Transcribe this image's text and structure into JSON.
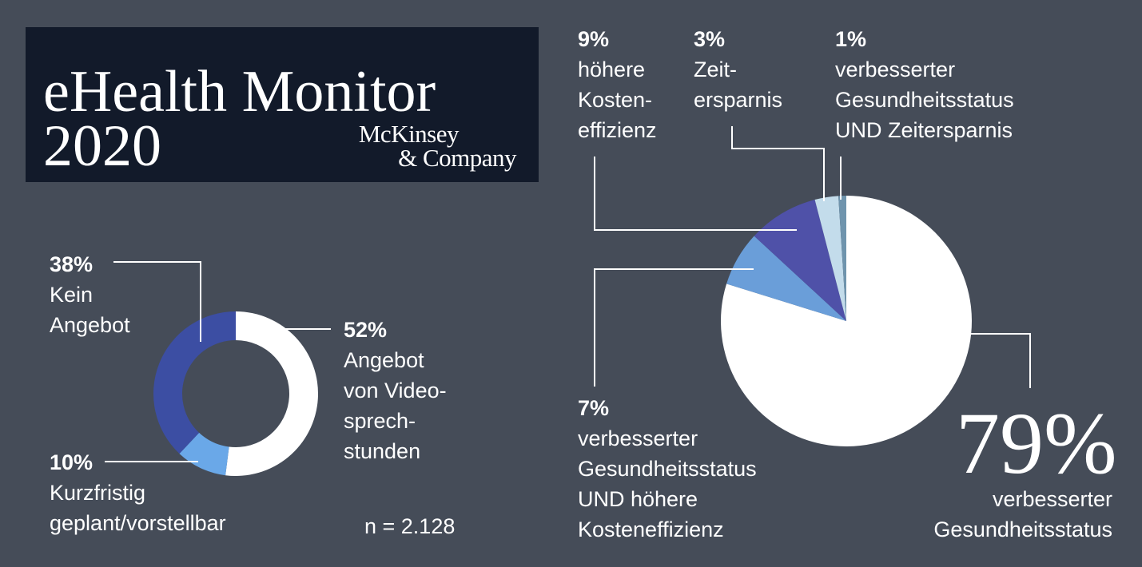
{
  "header": {
    "title_line1": "eHealth Monitor",
    "title_line2": "2020",
    "logo_line1": "McKinsey",
    "logo_line2": "& Company"
  },
  "sample_size": "n = 2.128",
  "colors": {
    "background": "#454c58",
    "header_box": "#121a2a",
    "white": "#ffffff",
    "dark_blue": "#3c4ea3",
    "medium_blue": "#4f51a8",
    "light_blue": "#6a9ed9",
    "pale_blue": "#c3dceb",
    "steel_blue": "#6f94ad",
    "line": "#ffffff"
  },
  "chart_data": [
    {
      "type": "pie",
      "variant": "donut",
      "labels": [
        {
          "pct": "52%",
          "lines": [
            "Angebot",
            "von Video-",
            "sprech-",
            "stunden"
          ]
        },
        {
          "pct": "10%",
          "lines": [
            "Kurzfristig",
            "geplant/vorstellbar"
          ]
        },
        {
          "pct": "38%",
          "lines": [
            "Kein",
            "Angebot"
          ]
        }
      ],
      "values": [
        52,
        10,
        38
      ],
      "colors": [
        "#ffffff",
        "#6aa8e8",
        "#3c4ea3"
      ]
    },
    {
      "type": "pie",
      "labels": [
        {
          "pct": "79%",
          "lines": [
            "verbesserter",
            "Gesundheitsstatus"
          ]
        },
        {
          "pct": "7%",
          "lines": [
            "verbesserter",
            "Gesundheitsstatus",
            "UND höhere",
            "Kosteneffizienz"
          ]
        },
        {
          "pct": "9%",
          "lines": [
            "höhere",
            "Kosten-",
            "effizienz"
          ]
        },
        {
          "pct": "3%",
          "lines": [
            "Zeit-",
            "ersparnis"
          ]
        },
        {
          "pct": "1%",
          "lines": [
            "verbesserter",
            "Gesundheitsstatus",
            "UND Zeitersparnis"
          ]
        }
      ],
      "values": [
        79,
        7,
        9,
        3,
        1
      ],
      "colors": [
        "#ffffff",
        "#6a9ed9",
        "#4f51a8",
        "#c3dceb",
        "#6f94ad"
      ]
    }
  ]
}
